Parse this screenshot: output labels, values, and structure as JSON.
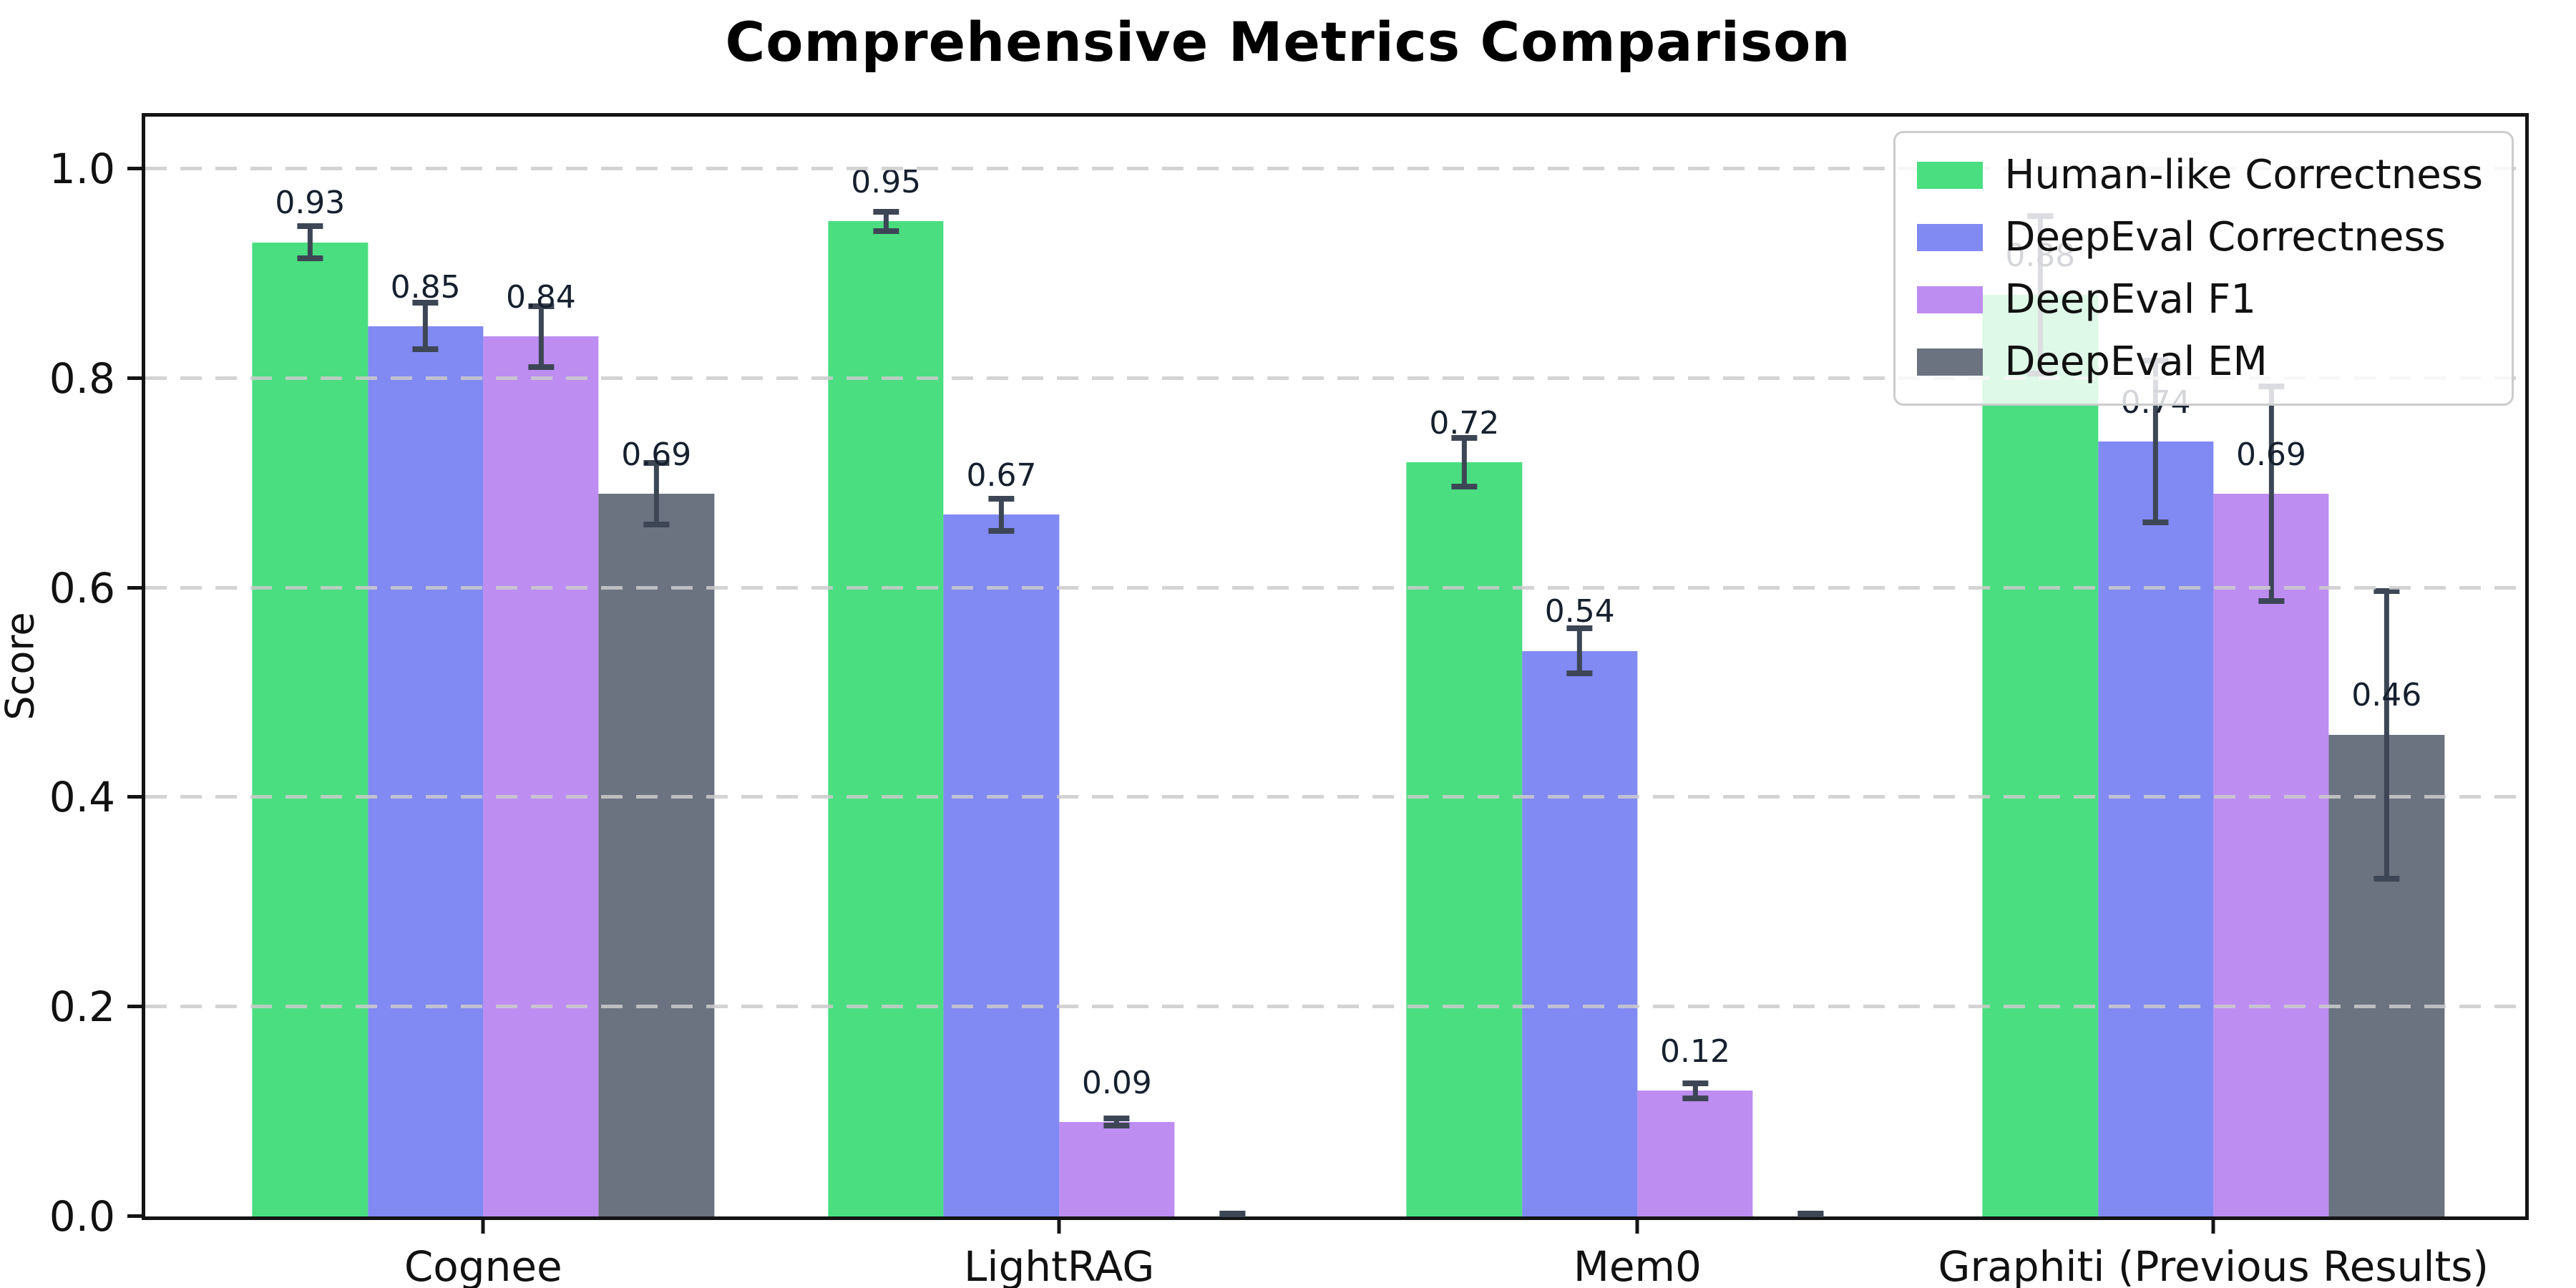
{
  "title": "Comprehensive Metrics Comparison",
  "chart_data": {
    "type": "bar",
    "title": "Comprehensive Metrics Comparison",
    "ylabel": "Score",
    "xlabel": "",
    "ylim": [
      0,
      1.05
    ],
    "yticks": [
      "0.0",
      "0.2",
      "0.4",
      "0.6",
      "0.8",
      "1.0"
    ],
    "grid": "dashed-horizontal-on-top",
    "legend_position": "upper-right",
    "categories": [
      "Cognee",
      "LightRAG",
      "Mem0",
      "Graphiti (Previous Results)"
    ],
    "series": [
      {
        "name": "Human-like Correctness",
        "color": "#4ade80",
        "values": [
          0.93,
          0.95,
          0.72,
          0.88
        ],
        "errors": [
          0.018,
          0.012,
          0.026,
          0.078
        ],
        "labels": [
          "0.93",
          "0.95",
          "0.72",
          "0.88"
        ]
      },
      {
        "name": "DeepEval Correctness",
        "color": "#8189f2",
        "values": [
          0.85,
          0.67,
          0.54,
          0.74
        ],
        "errors": [
          0.025,
          0.018,
          0.024,
          0.08
        ],
        "labels": [
          "0.85",
          "0.67",
          "0.54",
          "0.74"
        ]
      },
      {
        "name": "DeepEval F1",
        "color": "#bd8df2",
        "values": [
          0.84,
          0.09,
          0.12,
          0.69
        ],
        "errors": [
          0.032,
          0.006,
          0.01,
          0.105
        ],
        "labels": [
          "0.84",
          "0.09",
          "0.12",
          "0.69"
        ]
      },
      {
        "name": "DeepEval EM",
        "color": "#6b7280",
        "values": [
          0.69,
          0.0,
          0.0,
          0.46
        ],
        "errors": [
          0.032,
          0.005,
          0.005,
          0.14
        ],
        "labels": [
          "0.69",
          "",
          "",
          "0.46"
        ]
      }
    ],
    "error_bar_color": "#3d4655",
    "value_label_offset": 0.02
  }
}
